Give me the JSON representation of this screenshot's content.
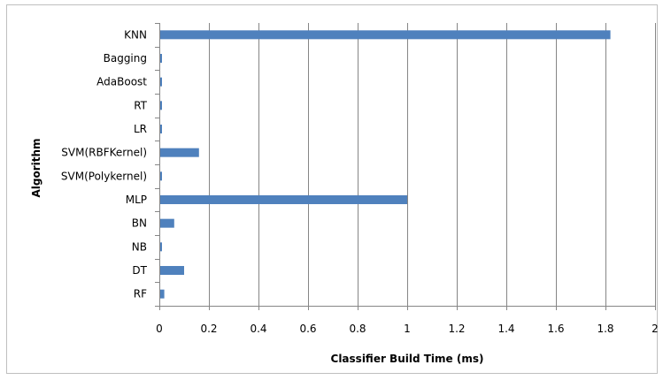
{
  "chart_data": {
    "type": "bar",
    "orientation": "horizontal",
    "categories": [
      "RF",
      "DT",
      "NB",
      "BN",
      "MLP",
      "SVM(Polykernel)",
      "SVM(RBFKernel)",
      "LR",
      "RT",
      "AdaBoost",
      "Bagging",
      "KNN"
    ],
    "series": [
      {
        "values": [
          0.02,
          0.1,
          0.005,
          0.06,
          1.0,
          0.005,
          0.16,
          0.005,
          0.005,
          0.005,
          0.005,
          1.82
        ]
      }
    ],
    "xlabel": "Classifier Build Time (ms)",
    "ylabel": "Algorithm",
    "xlim": [
      0,
      2
    ],
    "xticks": [
      "0",
      "0.2",
      "0.4",
      "0.6",
      "0.8",
      "1",
      "1.2",
      "1.4",
      "1.6",
      "1.8",
      "2"
    ],
    "grid": "vertical",
    "legend": "none",
    "colors": {
      "bar": "#4f81bd",
      "grid": "#868686",
      "axis": "#868686",
      "border": "#bfbfbf"
    }
  }
}
